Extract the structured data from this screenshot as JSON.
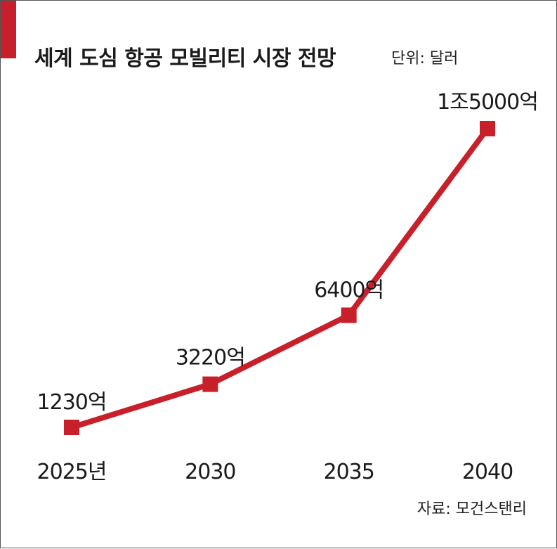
{
  "title": "세계 도심 항공 모빌리티 시장 전망",
  "unit": "단위: 달러",
  "source": "자료: 모건스탠리",
  "colors": {
    "accent": "#c8202a",
    "line": "#c8202a",
    "text": "#1a1a1a"
  },
  "chart_data": {
    "type": "line",
    "title": "세계 도심 항공 모빌리티 시장 전망",
    "unit_label": "단위: 달러",
    "categories": [
      "2025",
      "2030",
      "2035",
      "2040"
    ],
    "tick_labels": [
      "2025년",
      "2030",
      "2035",
      "2040"
    ],
    "series": [
      {
        "values": [
          123000000000,
          322000000000,
          640000000000,
          1500000000000
        ],
        "data_labels": [
          "1230억",
          "3220억",
          "6400억",
          "1조5000억"
        ]
      }
    ],
    "axes_visible": false,
    "grid": false,
    "legend": "none"
  }
}
